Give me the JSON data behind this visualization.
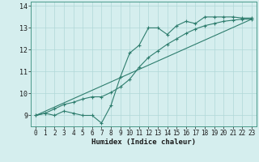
{
  "xlabel": "Humidex (Indice chaleur)",
  "bg_color": "#d5eeee",
  "line_color": "#2e7d6e",
  "grid_color": "#b0d8d8",
  "xlim": [
    -0.5,
    23.5
  ],
  "ylim": [
    8.5,
    14.2
  ],
  "yticks": [
    9,
    10,
    11,
    12,
    13,
    14
  ],
  "xticks": [
    0,
    1,
    2,
    3,
    4,
    5,
    6,
    7,
    8,
    9,
    10,
    11,
    12,
    13,
    14,
    15,
    16,
    17,
    18,
    19,
    20,
    21,
    22,
    23
  ],
  "line1_x": [
    0,
    1,
    2,
    3,
    4,
    5,
    6,
    7,
    8,
    9,
    10,
    11,
    12,
    13,
    14,
    15,
    16,
    17,
    18,
    19,
    20,
    21,
    22,
    23
  ],
  "line1_y": [
    9.0,
    9.1,
    9.0,
    9.2,
    9.1,
    9.0,
    9.0,
    8.65,
    9.45,
    10.75,
    11.85,
    12.2,
    13.0,
    13.0,
    12.7,
    13.1,
    13.3,
    13.2,
    13.5,
    13.5,
    13.5,
    13.5,
    13.45,
    13.45
  ],
  "line2_x": [
    0,
    1,
    2,
    3,
    4,
    5,
    6,
    7,
    8,
    9,
    10,
    11,
    12,
    13,
    14,
    15,
    16,
    17,
    18,
    19,
    20,
    21,
    22,
    23
  ],
  "line2_y": [
    9.0,
    9.1,
    9.3,
    9.5,
    9.6,
    9.75,
    9.85,
    9.85,
    10.05,
    10.3,
    10.65,
    11.2,
    11.65,
    11.95,
    12.25,
    12.5,
    12.75,
    12.95,
    13.1,
    13.2,
    13.3,
    13.35,
    13.4,
    13.4
  ],
  "line3_x": [
    0,
    23
  ],
  "line3_y": [
    9.0,
    13.4
  ]
}
